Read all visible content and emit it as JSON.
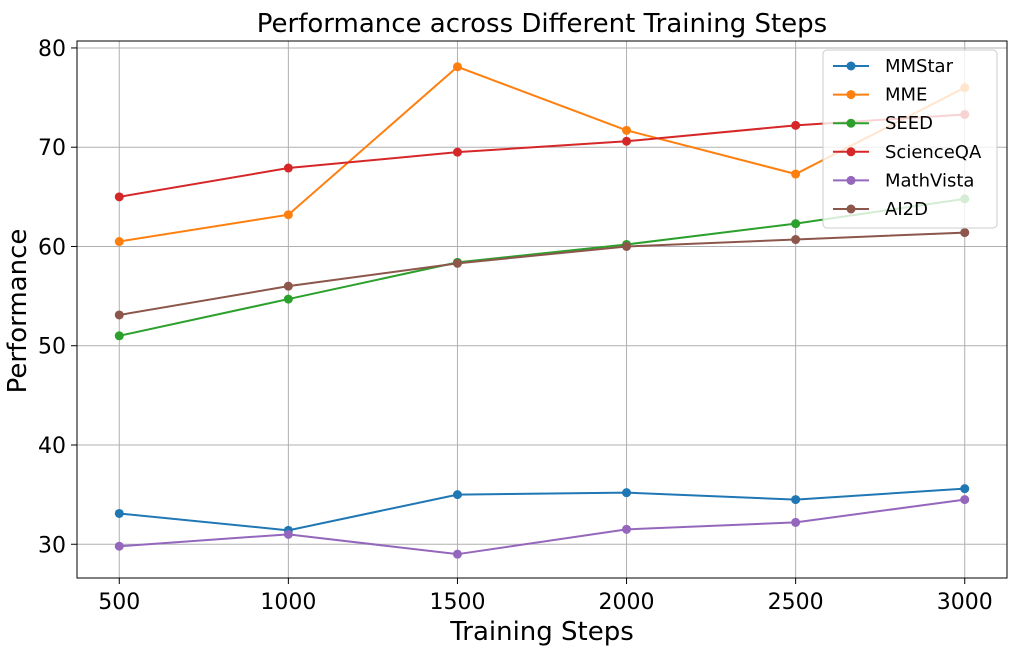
{
  "chart_data": {
    "type": "line",
    "title": "Performance across Different Training Steps",
    "xlabel": "Training Steps",
    "ylabel": "Performance",
    "x": [
      500,
      1000,
      1500,
      2000,
      2500,
      3000
    ],
    "xticks": [
      "500",
      "1000",
      "1500",
      "2000",
      "2500",
      "3000"
    ],
    "yticks": [
      "30",
      "40",
      "50",
      "60",
      "70",
      "80"
    ],
    "xlim": [
      375,
      3125
    ],
    "ylim": [
      26.6,
      80.7
    ],
    "grid": true,
    "legend_position": "top-right",
    "series": [
      {
        "name": "MMStar",
        "color": "#1f77b4",
        "values": [
          33.1,
          31.4,
          35.0,
          35.2,
          34.5,
          35.6
        ]
      },
      {
        "name": "MME",
        "color": "#ff7f0e",
        "values": [
          60.5,
          63.2,
          78.1,
          71.7,
          67.3,
          76.0
        ]
      },
      {
        "name": "SEED",
        "color": "#2ca02c",
        "values": [
          51.0,
          54.7,
          58.4,
          60.2,
          62.3,
          64.8
        ]
      },
      {
        "name": "ScienceQA",
        "color": "#d62728",
        "values": [
          65.0,
          67.9,
          69.5,
          70.6,
          72.2,
          73.3
        ]
      },
      {
        "name": "MathVista",
        "color": "#9467bd",
        "values": [
          29.8,
          31.0,
          29.0,
          31.5,
          32.2,
          34.5
        ]
      },
      {
        "name": "AI2D",
        "color": "#8c564b",
        "values": [
          53.1,
          56.0,
          58.3,
          60.0,
          60.7,
          61.4
        ]
      }
    ]
  }
}
